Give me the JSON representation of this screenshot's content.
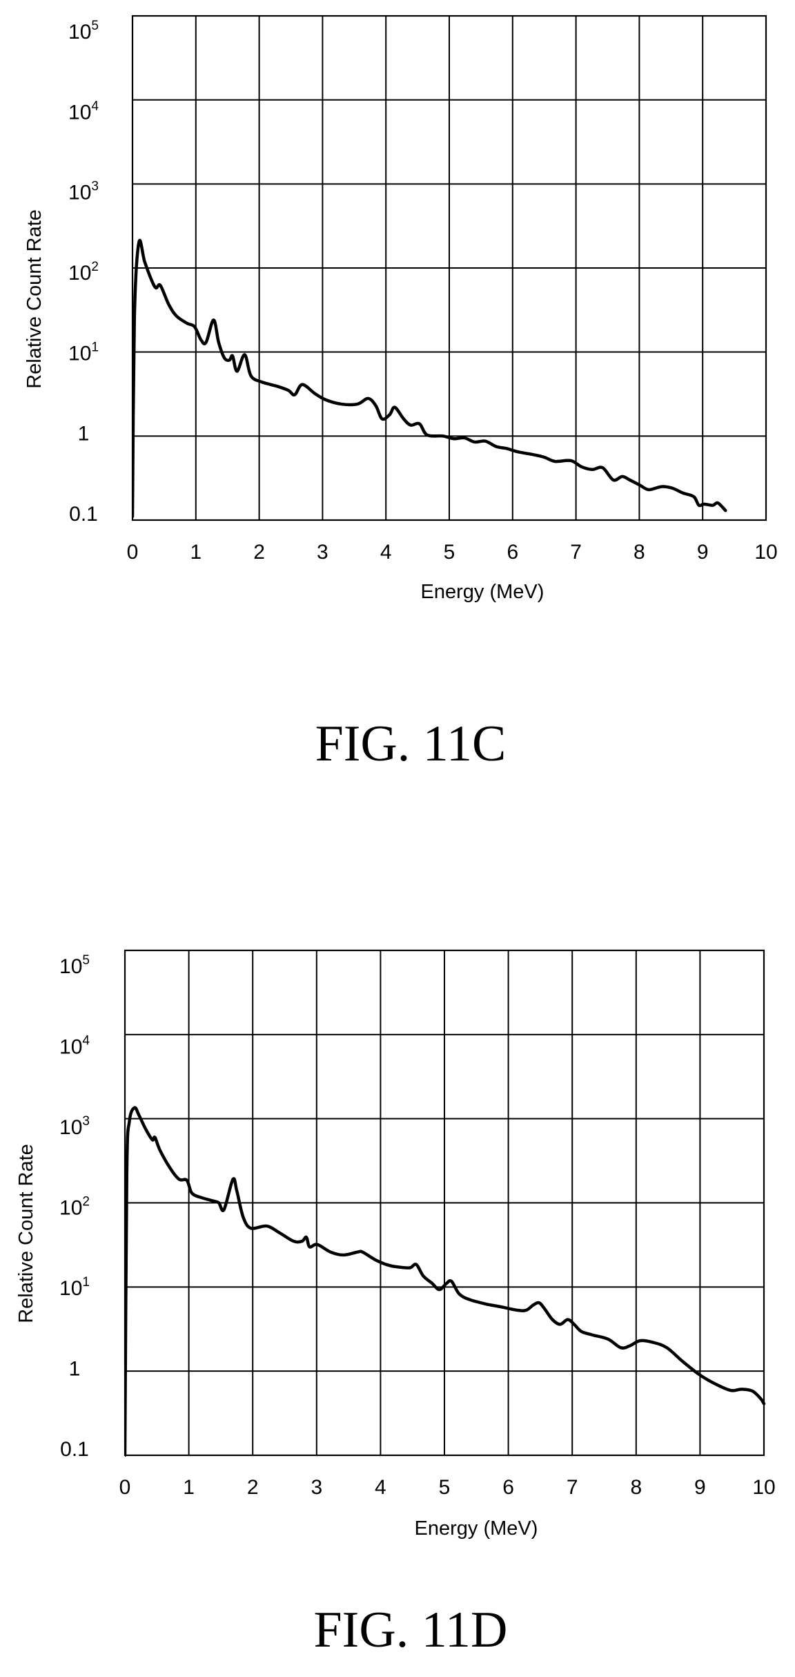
{
  "chart_data": [
    {
      "type": "line",
      "caption": "FIG. 11C",
      "xlabel": "Energy (MeV)",
      "ylabel": "Relative Count Rate",
      "xlim": [
        0,
        10
      ],
      "ylim": [
        0.1,
        100000
      ],
      "yscale": "log",
      "grid": true,
      "grid_color": "#000000",
      "x_ticks": [
        0,
        1,
        2,
        3,
        4,
        5,
        6,
        7,
        8,
        9,
        10
      ],
      "y_ticks": [
        {
          "value": 0.1,
          "label": "0.1"
        },
        {
          "value": 1,
          "label": "1"
        },
        {
          "value": 10,
          "label": "10",
          "sup": "1"
        },
        {
          "value": 100,
          "label": "10",
          "sup": "2"
        },
        {
          "value": 1000,
          "label": "10",
          "sup": "3"
        },
        {
          "value": 10000,
          "label": "10",
          "sup": "4"
        },
        {
          "value": 100000,
          "label": "10",
          "sup": "5"
        }
      ],
      "series": [
        {
          "color": "#000000",
          "points": [
            [
              0,
              0.11
            ],
            [
              0.03,
              25
            ],
            [
              0.1,
              200
            ],
            [
              0.19,
              120
            ],
            [
              0.3,
              72
            ],
            [
              0.37,
              58
            ],
            [
              0.44,
              62
            ],
            [
              0.57,
              37
            ],
            [
              0.69,
              27
            ],
            [
              0.86,
              22
            ],
            [
              0.98,
              20
            ],
            [
              1.08,
              14
            ],
            [
              1.16,
              13
            ],
            [
              1.28,
              24
            ],
            [
              1.36,
              13
            ],
            [
              1.45,
              8.5
            ],
            [
              1.53,
              8
            ],
            [
              1.58,
              9
            ],
            [
              1.65,
              5.9
            ],
            [
              1.77,
              9.3
            ],
            [
              1.87,
              5.2
            ],
            [
              2.04,
              4.4
            ],
            [
              2.29,
              3.9
            ],
            [
              2.46,
              3.5
            ],
            [
              2.56,
              3.1
            ],
            [
              2.68,
              4.1
            ],
            [
              2.88,
              3.2
            ],
            [
              3.05,
              2.7
            ],
            [
              3.3,
              2.4
            ],
            [
              3.55,
              2.4
            ],
            [
              3.72,
              2.8
            ],
            [
              3.84,
              2.3
            ],
            [
              3.94,
              1.6
            ],
            [
              4.06,
              1.8
            ],
            [
              4.14,
              2.2
            ],
            [
              4.28,
              1.6
            ],
            [
              4.39,
              1.35
            ],
            [
              4.53,
              1.4
            ],
            [
              4.65,
              1.03
            ],
            [
              4.9,
              1.0
            ],
            [
              5.07,
              0.93
            ],
            [
              5.24,
              0.95
            ],
            [
              5.4,
              0.85
            ],
            [
              5.57,
              0.87
            ],
            [
              5.74,
              0.75
            ],
            [
              5.91,
              0.71
            ],
            [
              6.08,
              0.65
            ],
            [
              6.33,
              0.6
            ],
            [
              6.5,
              0.56
            ],
            [
              6.67,
              0.5
            ],
            [
              6.92,
              0.51
            ],
            [
              7.09,
              0.43
            ],
            [
              7.26,
              0.4
            ],
            [
              7.42,
              0.42
            ],
            [
              7.59,
              0.3
            ],
            [
              7.73,
              0.33
            ],
            [
              7.85,
              0.3
            ],
            [
              8.01,
              0.26
            ],
            [
              8.15,
              0.23
            ],
            [
              8.35,
              0.25
            ],
            [
              8.52,
              0.24
            ],
            [
              8.69,
              0.21
            ],
            [
              8.86,
              0.19
            ],
            [
              8.94,
              0.15
            ],
            [
              9.02,
              0.155
            ],
            [
              9.16,
              0.15
            ],
            [
              9.24,
              0.16
            ],
            [
              9.36,
              0.13
            ]
          ]
        }
      ]
    },
    {
      "type": "line",
      "caption": "FIG. 11D",
      "xlabel": "Energy (MeV)",
      "ylabel": "Relative Count Rate",
      "xlim": [
        0,
        10
      ],
      "ylim": [
        0.1,
        100000
      ],
      "yscale": "log",
      "grid": true,
      "grid_color": "#000000",
      "x_ticks": [
        0,
        1,
        2,
        3,
        4,
        5,
        6,
        7,
        8,
        9,
        10
      ],
      "y_ticks": [
        {
          "value": 0.1,
          "label": "0.1"
        },
        {
          "value": 1,
          "label": "1"
        },
        {
          "value": 10,
          "label": "10",
          "sup": "1"
        },
        {
          "value": 100,
          "label": "10",
          "sup": "2"
        },
        {
          "value": 1000,
          "label": "10",
          "sup": "3"
        },
        {
          "value": 10000,
          "label": "10",
          "sup": "4"
        },
        {
          "value": 100000,
          "label": "10",
          "sup": "5"
        }
      ],
      "series": [
        {
          "color": "#000000",
          "points": [
            [
              0,
              0.1
            ],
            [
              0.03,
              220
            ],
            [
              0.07,
              930
            ],
            [
              0.15,
              1350
            ],
            [
              0.22,
              1100
            ],
            [
              0.33,
              740
            ],
            [
              0.43,
              560
            ],
            [
              0.47,
              600
            ],
            [
              0.55,
              420
            ],
            [
              0.72,
              250
            ],
            [
              0.85,
              190
            ],
            [
              0.97,
              185
            ],
            [
              1.05,
              130
            ],
            [
              1.22,
              114
            ],
            [
              1.39,
              105
            ],
            [
              1.47,
              100
            ],
            [
              1.55,
              83
            ],
            [
              1.69,
              190
            ],
            [
              1.75,
              140
            ],
            [
              1.85,
              68
            ],
            [
              1.97,
              50
            ],
            [
              2.22,
              53
            ],
            [
              2.42,
              44
            ],
            [
              2.64,
              35
            ],
            [
              2.77,
              35
            ],
            [
              2.84,
              39
            ],
            [
              2.89,
              30
            ],
            [
              3.01,
              32
            ],
            [
              3.22,
              26
            ],
            [
              3.42,
              24
            ],
            [
              3.64,
              26
            ],
            [
              3.72,
              26
            ],
            [
              3.92,
              21
            ],
            [
              4.14,
              18
            ],
            [
              4.36,
              17
            ],
            [
              4.47,
              17
            ],
            [
              4.56,
              18.5
            ],
            [
              4.67,
              13.5
            ],
            [
              4.81,
              11
            ],
            [
              4.92,
              9.3
            ],
            [
              5.03,
              11
            ],
            [
              5.11,
              11.7
            ],
            [
              5.23,
              8.3
            ],
            [
              5.39,
              7.1
            ],
            [
              5.64,
              6.3
            ],
            [
              5.89,
              5.8
            ],
            [
              6.14,
              5.3
            ],
            [
              6.28,
              5.3
            ],
            [
              6.39,
              6.1
            ],
            [
              6.48,
              6.5
            ],
            [
              6.56,
              5.6
            ],
            [
              6.69,
              4.1
            ],
            [
              6.81,
              3.6
            ],
            [
              6.93,
              4.1
            ],
            [
              7.03,
              3.6
            ],
            [
              7.14,
              2.97
            ],
            [
              7.31,
              2.7
            ],
            [
              7.56,
              2.4
            ],
            [
              7.76,
              1.9
            ],
            [
              7.9,
              2.0
            ],
            [
              8.06,
              2.3
            ],
            [
              8.26,
              2.2
            ],
            [
              8.48,
              1.9
            ],
            [
              8.73,
              1.3
            ],
            [
              8.98,
              0.92
            ],
            [
              9.23,
              0.71
            ],
            [
              9.48,
              0.59
            ],
            [
              9.65,
              0.61
            ],
            [
              9.82,
              0.58
            ],
            [
              9.95,
              0.47
            ],
            [
              10.0,
              0.41
            ]
          ]
        }
      ]
    }
  ]
}
